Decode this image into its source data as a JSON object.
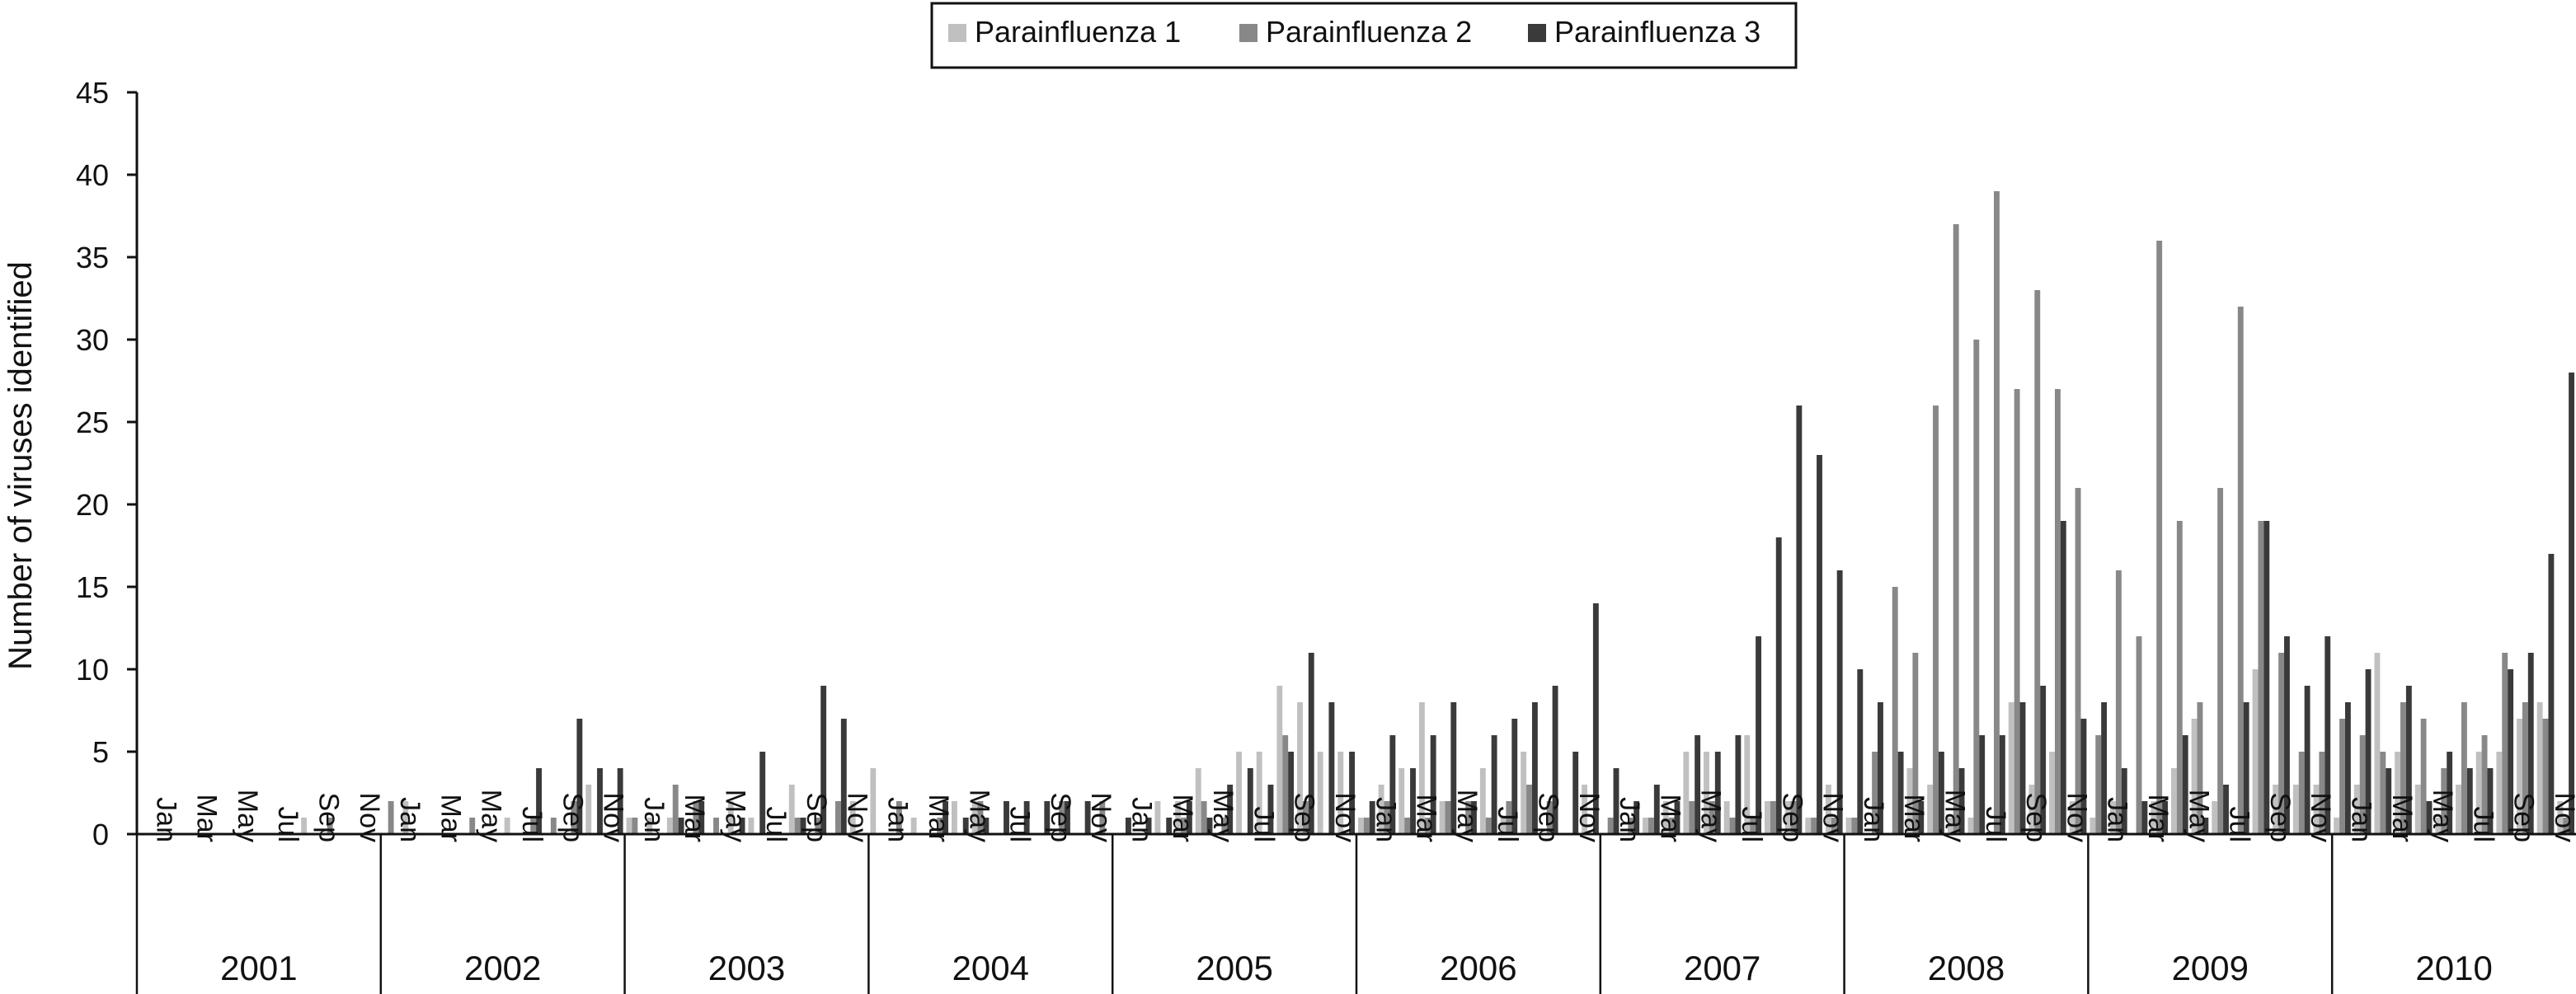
{
  "chart_data": {
    "type": "bar",
    "ylabel": "Number of viruses identified",
    "ylim": [
      0,
      45
    ],
    "yticks": [
      0,
      5,
      10,
      15,
      20,
      25,
      30,
      35,
      40,
      45
    ],
    "grid": false,
    "legend_position": "top-center",
    "years": [
      "2001",
      "2002",
      "2003",
      "2004",
      "2005",
      "2006",
      "2007",
      "2008",
      "2009",
      "2010"
    ],
    "month_labels": [
      "Jan",
      "Mar",
      "May",
      "Jul",
      "Sep",
      "Nov"
    ],
    "x_start": "2001-01",
    "x_end": "2010-12",
    "series": [
      {
        "name": "Parainfluenza 1",
        "color": "#c0c0c0",
        "values": [
          0,
          0,
          0,
          0,
          0,
          0,
          0,
          0,
          1,
          0,
          0,
          0,
          0,
          2,
          0,
          0,
          0,
          0,
          1,
          0,
          0,
          0,
          3,
          0,
          1,
          1,
          1,
          0,
          0,
          2,
          1,
          0,
          3,
          0,
          0,
          2,
          4,
          0,
          1,
          0,
          2,
          2,
          0,
          0,
          0,
          0,
          0,
          0,
          0,
          0,
          2,
          2,
          4,
          0,
          5,
          5,
          9,
          8,
          5,
          5,
          1,
          3,
          4,
          8,
          2,
          0,
          4,
          1,
          5,
          0,
          0,
          3,
          0,
          0,
          1,
          2,
          5,
          5,
          2,
          6,
          2,
          2,
          1,
          3,
          1,
          0,
          0,
          4,
          3,
          1,
          1,
          0,
          8,
          3,
          5,
          2,
          1,
          2,
          0,
          2,
          4,
          7,
          2,
          0,
          10,
          3,
          3,
          3,
          1,
          3,
          11,
          5,
          3,
          1,
          3,
          5,
          5,
          7,
          8,
          2
        ]
      },
      {
        "name": "Parainfluenza 2",
        "color": "#888888",
        "values": [
          0,
          0,
          0,
          0,
          0,
          0,
          0,
          0,
          0,
          1,
          0,
          0,
          2,
          0,
          0,
          0,
          1,
          0,
          0,
          1,
          1,
          2,
          0,
          0,
          1,
          0,
          3,
          2,
          1,
          0,
          0,
          0,
          1,
          1,
          2,
          0,
          0,
          2,
          0,
          1,
          0,
          2,
          0,
          0,
          0,
          2,
          0,
          2,
          0,
          0,
          0,
          1,
          2,
          1,
          0,
          0,
          6,
          2,
          0,
          0,
          1,
          2,
          1,
          1,
          2,
          2,
          1,
          2,
          3,
          2,
          0,
          0,
          1,
          1,
          1,
          1,
          2,
          2,
          1,
          1,
          2,
          2,
          1,
          1,
          1,
          5,
          15,
          11,
          26,
          37,
          30,
          39,
          27,
          33,
          27,
          21,
          6,
          16,
          12,
          36,
          19,
          8,
          21,
          32,
          19,
          11,
          5,
          5,
          7,
          6,
          5,
          8,
          7,
          4,
          8,
          6,
          11,
          8,
          7,
          1
        ]
      },
      {
        "name": "Parainfluenza 3",
        "color": "#3a3a3a",
        "values": [
          0,
          0,
          0,
          0,
          0,
          0,
          0,
          0,
          0,
          0,
          0,
          0,
          0,
          0,
          0,
          0,
          0,
          0,
          0,
          4,
          0,
          7,
          4,
          4,
          0,
          0,
          1,
          2,
          0,
          1,
          5,
          0,
          1,
          9,
          7,
          0,
          0,
          0,
          0,
          2,
          1,
          1,
          2,
          2,
          2,
          2,
          2,
          0,
          1,
          1,
          1,
          2,
          1,
          3,
          4,
          3,
          5,
          11,
          8,
          5,
          2,
          6,
          4,
          6,
          8,
          2,
          6,
          7,
          8,
          9,
          5,
          14,
          4,
          2,
          3,
          2,
          6,
          5,
          6,
          12,
          18,
          26,
          23,
          16,
          10,
          8,
          5,
          2,
          5,
          4,
          6,
          6,
          8,
          9,
          19,
          7,
          8,
          4,
          2,
          2,
          6,
          1,
          3,
          8,
          19,
          12,
          9,
          12,
          8,
          10,
          4,
          9,
          2,
          5,
          4,
          4,
          10,
          11,
          17,
          28
        ]
      }
    ]
  }
}
